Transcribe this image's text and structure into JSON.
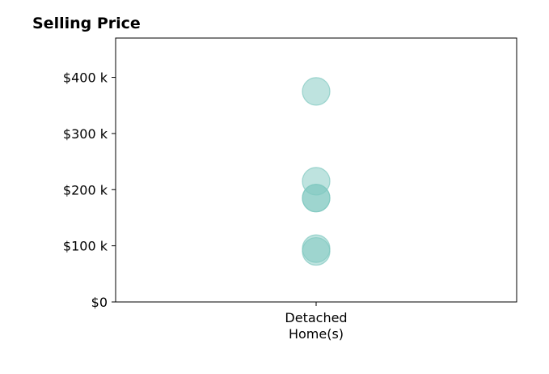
{
  "chart_data": {
    "type": "scatter",
    "title": "Selling Price",
    "categories": [
      "Detached\nHome(s)"
    ],
    "y_ticks": [
      {
        "value": 0,
        "label": "$0"
      },
      {
        "value": 100000,
        "label": "$100 k"
      },
      {
        "value": 200000,
        "label": "$200 k"
      },
      {
        "value": 300000,
        "label": "$300 k"
      },
      {
        "value": 400000,
        "label": "$400 k"
      }
    ],
    "ylim": [
      0,
      470000
    ],
    "xlabel": "",
    "ylabel": "",
    "grid": false,
    "series": [
      {
        "category": "Detached\nHome(s)",
        "values": [
          375000,
          215000,
          185000,
          185000,
          95000,
          90000
        ],
        "color": "#7ec8bf"
      }
    ]
  }
}
